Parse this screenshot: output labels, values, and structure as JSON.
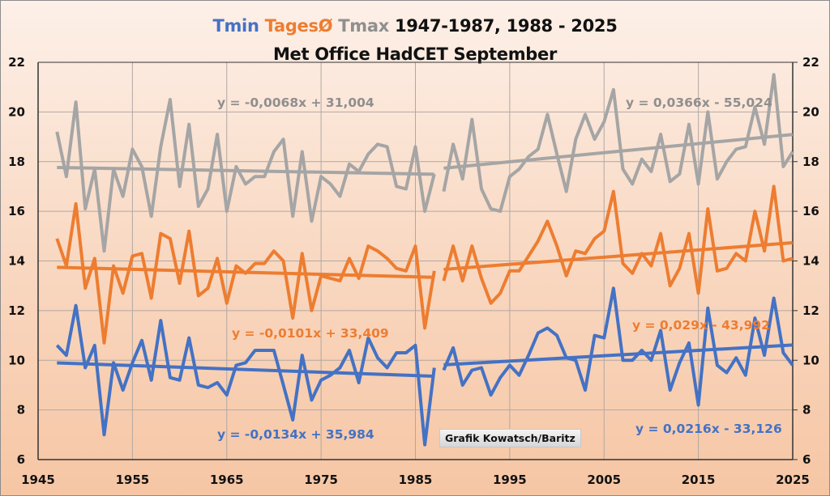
{
  "chart_data": {
    "type": "line",
    "title_parts": [
      {
        "text": "Tmin ",
        "series": "Tmin"
      },
      {
        "text": "TagesØ ",
        "series": "TagesØ"
      },
      {
        "text": "Tmax ",
        "series": "Tmax"
      },
      {
        "text": "1947-1987, 1988 - 2025",
        "series": null
      }
    ],
    "subtitle": "Met Office HadCET September",
    "xlabel": "",
    "ylabel": "",
    "xlim": [
      1945,
      2025
    ],
    "ylim": [
      6,
      22
    ],
    "x_ticks": [
      1945,
      1955,
      1965,
      1975,
      1985,
      1995,
      2005,
      2015,
      2025
    ],
    "y_ticks": [
      6,
      8,
      10,
      12,
      14,
      16,
      18,
      20,
      22
    ],
    "y_ticks_right": [
      6,
      8,
      10,
      12,
      14,
      16,
      18,
      20,
      22
    ],
    "grid": true,
    "segments": [
      {
        "label": "1947-1987",
        "x_start": 1947,
        "x_end": 1987
      },
      {
        "label": "1988-2025",
        "x_start": 1988,
        "x_end": 2025
      }
    ],
    "series": [
      {
        "name": "Tmax",
        "color": "#a5a5a5",
        "values_1947_1987": [
          19.2,
          17.4,
          20.4,
          16.1,
          17.7,
          14.4,
          17.7,
          16.6,
          18.5,
          17.8,
          15.8,
          18.6,
          20.5,
          17.0,
          19.5,
          16.2,
          16.9,
          19.1,
          16.0,
          17.8,
          17.1,
          17.4,
          17.4,
          18.4,
          18.9,
          15.8,
          18.4,
          15.6,
          17.4,
          17.1,
          16.6,
          17.9,
          17.6,
          18.3,
          18.7,
          18.6,
          17.0,
          16.9,
          18.6,
          16.0,
          17.5
        ],
        "values_1988_2025": [
          16.8,
          18.7,
          17.3,
          19.7,
          16.9,
          16.1,
          16.0,
          17.4,
          17.7,
          18.2,
          18.5,
          19.9,
          18.3,
          16.8,
          18.9,
          19.9,
          18.9,
          19.6,
          20.9,
          17.7,
          17.1,
          18.1,
          17.6,
          19.1,
          17.2,
          17.5,
          19.5,
          17.1,
          20.0,
          17.3,
          18.0,
          18.5,
          18.6,
          20.2,
          18.7,
          21.5,
          17.8,
          18.4
        ],
        "trend_1": {
          "equation": "y = -0,0068x + 31,004",
          "slope": -0.0068,
          "intercept": 31.004
        },
        "trend_2": {
          "equation": "y = 0,0366x - 55,024",
          "slope": 0.0366,
          "intercept": -55.024
        }
      },
      {
        "name": "TagesØ",
        "color": "#ed7d31",
        "values_1947_1987": [
          14.9,
          13.8,
          16.3,
          12.9,
          14.1,
          10.7,
          13.8,
          12.7,
          14.2,
          14.3,
          12.5,
          15.1,
          14.9,
          13.1,
          15.2,
          12.6,
          12.9,
          14.1,
          12.3,
          13.8,
          13.5,
          13.9,
          13.9,
          14.4,
          14.0,
          11.7,
          14.3,
          12.0,
          13.4,
          13.3,
          13.2,
          14.1,
          13.3,
          14.6,
          14.4,
          14.1,
          13.7,
          13.6,
          14.6,
          11.3,
          13.6
        ],
        "values_1988_2025": [
          13.2,
          14.6,
          13.2,
          14.6,
          13.3,
          12.3,
          12.7,
          13.6,
          13.6,
          14.2,
          14.8,
          15.6,
          14.6,
          13.4,
          14.4,
          14.3,
          14.9,
          15.2,
          16.8,
          13.9,
          13.5,
          14.3,
          13.8,
          15.1,
          13.0,
          13.7,
          15.1,
          12.7,
          16.1,
          13.6,
          13.7,
          14.3,
          14.0,
          16.0,
          14.4,
          17.0,
          14.0,
          14.1
        ],
        "trend_1": {
          "equation": "y = -0,0101x + 33,409",
          "slope": -0.0101,
          "intercept": 33.409
        },
        "trend_2": {
          "equation": "y = 0,029x - 43,992",
          "slope": 0.029,
          "intercept": -43.992
        }
      },
      {
        "name": "Tmin",
        "color": "#4472c4",
        "values_1947_1987": [
          10.6,
          10.2,
          12.2,
          9.7,
          10.6,
          7.0,
          9.9,
          8.8,
          9.9,
          10.8,
          9.2,
          11.6,
          9.3,
          9.2,
          10.9,
          9.0,
          8.9,
          9.1,
          8.6,
          9.8,
          9.9,
          10.4,
          10.4,
          10.4,
          9.0,
          7.6,
          10.2,
          8.4,
          9.2,
          9.4,
          9.7,
          10.4,
          9.1,
          10.9,
          10.1,
          9.7,
          10.3,
          10.3,
          10.6,
          6.6,
          9.7
        ],
        "values_1988_2025": [
          9.6,
          10.5,
          9.0,
          9.6,
          9.7,
          8.6,
          9.3,
          9.8,
          9.4,
          10.2,
          11.1,
          11.3,
          11.0,
          10.1,
          10.0,
          8.8,
          11.0,
          10.9,
          12.9,
          10.0,
          10.0,
          10.4,
          10.0,
          11.2,
          8.8,
          9.9,
          10.7,
          8.2,
          12.1,
          9.8,
          9.5,
          10.1,
          9.4,
          11.7,
          10.2,
          12.5,
          10.3,
          9.8
        ],
        "trend_1": {
          "equation": "y = -0,0134x + 35,984",
          "slope": -0.0134,
          "intercept": 35.984
        },
        "trend_2": {
          "equation": "y = 0,0216x - 33,126",
          "slope": 0.0216,
          "intercept": -33.126
        }
      }
    ],
    "annotations": [
      "Grafik Kowatsch/Baritz"
    ]
  }
}
